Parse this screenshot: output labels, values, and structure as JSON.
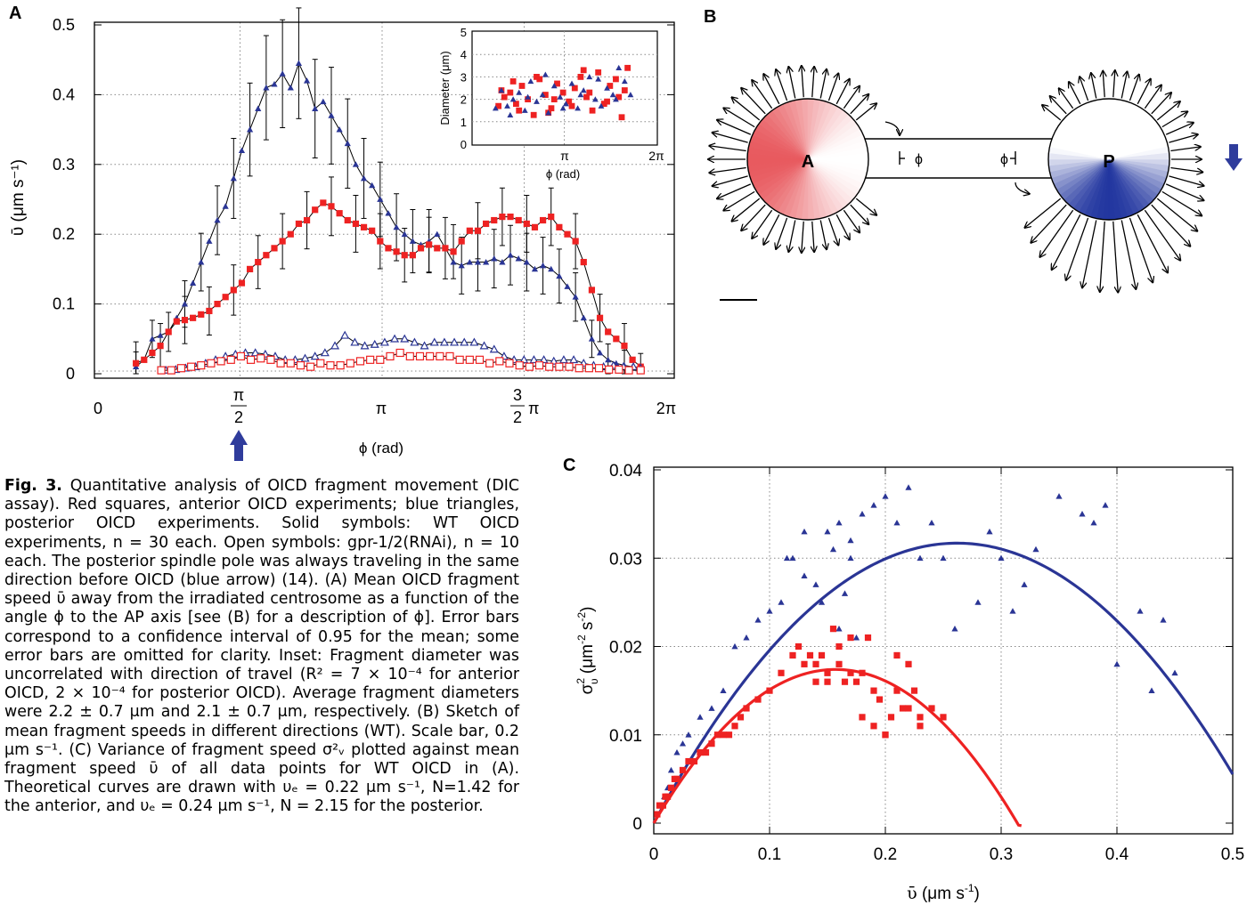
{
  "panels": {
    "a": "A",
    "b": "B",
    "c": "C"
  },
  "panel_a": {
    "xlabel": "ϕ (rad)",
    "ylabel": "ῡ  (μm s⁻¹)",
    "yticks": [
      "0",
      "0.1",
      "0.2",
      "0.3",
      "0.4",
      "0.5"
    ],
    "xticks": [
      "0",
      "π/2",
      "π",
      "3/2 π",
      "2π"
    ]
  },
  "inset": {
    "xlabel": "ϕ (rad)",
    "ylabel": "Diameter (μm)",
    "yticks": [
      "0",
      "1",
      "2",
      "3",
      "4",
      "5"
    ],
    "xticks": [
      "π",
      "2π"
    ]
  },
  "panel_b": {
    "label_a": "A",
    "label_p": "P",
    "phi_left": "ϕ",
    "phi_right": "ϕ"
  },
  "panel_c": {
    "xlabel": "ῡ  (μm s⁻¹)",
    "ylabel": "σ²ᵥ  (μm⁻² s⁻²)",
    "xticks": [
      "0",
      "0.1",
      "0.2",
      "0.3",
      "0.4",
      "0.5"
    ],
    "yticks": [
      "0",
      "0.01",
      "0.02",
      "0.03",
      "0.04"
    ]
  },
  "colors": {
    "anterior": "#ee2222",
    "posterior": "#2a3595",
    "arrow": "#2f3c9c"
  },
  "chart_data": [
    {
      "type": "line",
      "panel": "A",
      "xlim": [
        0,
        6.2832
      ],
      "ylim": [
        0,
        0.5
      ],
      "grid": true,
      "series": [
        {
          "marker": "filled-triangle",
          "color": "#2a3595",
          "x": [
            0.42,
            0.51,
            0.6,
            0.69,
            0.78,
            0.87,
            0.96,
            1.05,
            1.14,
            1.23,
            1.32,
            1.41,
            1.5,
            1.59,
            1.68,
            1.77,
            1.86,
            1.95,
            2.04,
            2.13,
            2.22,
            2.31,
            2.4,
            2.49,
            2.58,
            2.67,
            2.76,
            2.85,
            2.94,
            3.03,
            3.12,
            3.21,
            3.3,
            3.39,
            3.48,
            3.57,
            3.66,
            3.75,
            3.84,
            3.93,
            4.02,
            4.11,
            4.2,
            4.29,
            4.38,
            4.47,
            4.56,
            4.65,
            4.74,
            4.83,
            4.92,
            5.01,
            5.1,
            5.19,
            5.28,
            5.37,
            5.46,
            5.55,
            5.64,
            5.73,
            5.82,
            5.91,
            6.0
          ],
          "y": [
            0.01,
            0.02,
            0.05,
            0.055,
            0.06,
            0.08,
            0.1,
            0.13,
            0.16,
            0.19,
            0.22,
            0.24,
            0.28,
            0.32,
            0.35,
            0.38,
            0.41,
            0.415,
            0.43,
            0.41,
            0.445,
            0.42,
            0.38,
            0.39,
            0.37,
            0.35,
            0.33,
            0.3,
            0.28,
            0.27,
            0.25,
            0.23,
            0.21,
            0.2,
            0.19,
            0.185,
            0.19,
            0.2,
            0.18,
            0.16,
            0.155,
            0.16,
            0.16,
            0.16,
            0.165,
            0.16,
            0.17,
            0.165,
            0.16,
            0.15,
            0.155,
            0.15,
            0.14,
            0.125,
            0.11,
            0.08,
            0.05,
            0.03,
            0.02,
            0.015,
            0.012,
            0.01,
            0.008
          ]
        },
        {
          "marker": "filled-square",
          "color": "#ee2222",
          "x": [
            0.42,
            0.51,
            0.6,
            0.69,
            0.78,
            0.87,
            0.96,
            1.05,
            1.14,
            1.23,
            1.32,
            1.41,
            1.5,
            1.59,
            1.68,
            1.77,
            1.86,
            1.95,
            2.04,
            2.13,
            2.22,
            2.31,
            2.4,
            2.49,
            2.58,
            2.67,
            2.76,
            2.85,
            2.94,
            3.03,
            3.12,
            3.21,
            3.3,
            3.39,
            3.48,
            3.57,
            3.66,
            3.75,
            3.84,
            3.93,
            4.02,
            4.11,
            4.2,
            4.29,
            4.38,
            4.47,
            4.56,
            4.65,
            4.74,
            4.83,
            4.92,
            5.01,
            5.1,
            5.19,
            5.28,
            5.37,
            5.46,
            5.55,
            5.64,
            5.73,
            5.82,
            5.91,
            6.0
          ],
          "y": [
            0.015,
            0.02,
            0.03,
            0.04,
            0.06,
            0.075,
            0.077,
            0.08,
            0.085,
            0.09,
            0.1,
            0.11,
            0.12,
            0.13,
            0.15,
            0.16,
            0.17,
            0.18,
            0.19,
            0.2,
            0.215,
            0.22,
            0.235,
            0.245,
            0.24,
            0.23,
            0.22,
            0.215,
            0.21,
            0.205,
            0.19,
            0.18,
            0.175,
            0.17,
            0.17,
            0.18,
            0.185,
            0.18,
            0.18,
            0.175,
            0.19,
            0.205,
            0.205,
            0.215,
            0.22,
            0.225,
            0.225,
            0.22,
            0.215,
            0.21,
            0.22,
            0.225,
            0.21,
            0.2,
            0.19,
            0.16,
            0.12,
            0.08,
            0.06,
            0.05,
            0.04,
            0.02,
            0.01
          ]
        },
        {
          "marker": "open-triangle",
          "color": "#2a3595",
          "x": [
            0.75,
            0.86,
            0.97,
            1.08,
            1.19,
            1.3,
            1.41,
            1.52,
            1.63,
            1.74,
            1.85,
            1.96,
            2.07,
            2.18,
            2.29,
            2.4,
            2.51,
            2.62,
            2.73,
            2.84,
            2.95,
            3.06,
            3.17,
            3.28,
            3.39,
            3.5,
            3.61,
            3.72,
            3.83,
            3.94,
            4.05,
            4.16,
            4.27,
            4.38,
            4.49,
            4.6,
            4.71,
            4.82,
            4.93,
            5.04,
            5.15,
            5.26,
            5.37,
            5.48,
            5.59,
            5.7,
            5.81,
            5.92,
            6.0
          ],
          "y": [
            0.005,
            0.006,
            0.008,
            0.01,
            0.015,
            0.02,
            0.025,
            0.028,
            0.03,
            0.03,
            0.028,
            0.025,
            0.02,
            0.02,
            0.022,
            0.025,
            0.03,
            0.04,
            0.055,
            0.045,
            0.04,
            0.042,
            0.045,
            0.05,
            0.05,
            0.045,
            0.04,
            0.045,
            0.045,
            0.045,
            0.045,
            0.045,
            0.04,
            0.035,
            0.025,
            0.02,
            0.02,
            0.02,
            0.02,
            0.018,
            0.02,
            0.02,
            0.015,
            0.012,
            0.01,
            0.012,
            0.01,
            0.01,
            0.008
          ]
        },
        {
          "marker": "open-square",
          "color": "#ee2222",
          "x": [
            0.7,
            0.81,
            0.92,
            1.03,
            1.14,
            1.25,
            1.36,
            1.47,
            1.58,
            1.69,
            1.8,
            1.91,
            2.02,
            2.13,
            2.24,
            2.35,
            2.46,
            2.57,
            2.68,
            2.79,
            2.9,
            3.01,
            3.12,
            3.23,
            3.34,
            3.45,
            3.56,
            3.67,
            3.78,
            3.89,
            4.0,
            4.11,
            4.22,
            4.33,
            4.44,
            4.55,
            4.66,
            4.77,
            4.88,
            4.99,
            5.1,
            5.21,
            5.32,
            5.43,
            5.54,
            5.65,
            5.76,
            5.87,
            6.0
          ],
          "y": [
            0.005,
            0.005,
            0.008,
            0.01,
            0.012,
            0.015,
            0.018,
            0.02,
            0.025,
            0.02,
            0.022,
            0.02,
            0.015,
            0.015,
            0.012,
            0.01,
            0.015,
            0.012,
            0.012,
            0.015,
            0.018,
            0.02,
            0.02,
            0.025,
            0.03,
            0.025,
            0.025,
            0.025,
            0.025,
            0.025,
            0.02,
            0.02,
            0.02,
            0.015,
            0.018,
            0.015,
            0.012,
            0.01,
            0.012,
            0.01,
            0.01,
            0.01,
            0.008,
            0.008,
            0.008,
            0.006,
            0.006,
            0.005,
            0.005
          ]
        }
      ]
    },
    {
      "type": "scatter",
      "panel": "A-inset",
      "xlim": [
        0,
        6.2832
      ],
      "ylim": [
        0,
        5
      ],
      "series": [
        {
          "marker": "filled-square",
          "color": "#ee2222",
          "x": [
            0.9,
            1.1,
            1.3,
            1.5,
            1.7,
            1.9,
            2.1,
            2.3,
            2.5,
            2.7,
            2.9,
            3.1,
            3.3,
            3.5,
            3.7,
            3.9,
            4.1,
            4.3,
            4.5,
            4.7,
            4.9,
            5.1,
            5.3,
            1.0,
            1.6,
            2.2,
            2.8,
            3.4,
            4.0,
            4.6,
            5.2,
            1.4,
            2.6,
            3.8,
            5.0
          ],
          "y": [
            1.7,
            2.1,
            2.3,
            1.8,
            2.6,
            2.0,
            1.3,
            2.9,
            2.2,
            1.6,
            2.7,
            2.3,
            1.9,
            2.5,
            3.0,
            2.1,
            1.5,
            3.2,
            1.8,
            2.6,
            2.9,
            1.2,
            3.4,
            2.4,
            1.5,
            3.0,
            2.0,
            1.7,
            2.3,
            1.9,
            2.4,
            2.8,
            1.4,
            3.3,
            2.1
          ]
        },
        {
          "marker": "filled-triangle",
          "color": "#2a3595",
          "x": [
            0.8,
            1.0,
            1.2,
            1.4,
            1.6,
            1.8,
            2.0,
            2.2,
            2.4,
            2.6,
            2.8,
            3.0,
            3.2,
            3.4,
            3.6,
            3.8,
            4.0,
            4.2,
            4.4,
            4.6,
            4.8,
            5.0,
            5.2,
            5.4,
            1.3,
            1.9,
            2.5,
            3.1,
            3.7,
            4.3,
            4.9
          ],
          "y": [
            1.6,
            2.4,
            1.7,
            2.0,
            2.3,
            1.5,
            2.8,
            1.9,
            2.2,
            1.4,
            2.6,
            2.1,
            1.8,
            2.7,
            1.6,
            2.4,
            3.0,
            2.0,
            1.7,
            2.5,
            2.2,
            3.4,
            2.8,
            2.2,
            1.3,
            2.1,
            3.1,
            1.6,
            2.2,
            2.9,
            2.0
          ]
        }
      ]
    },
    {
      "type": "scatter",
      "panel": "C",
      "xlim": [
        0,
        0.5
      ],
      "ylim": [
        0,
        0.04
      ],
      "grid": true,
      "series": [
        {
          "marker": "filled-triangle",
          "color": "#2a3595",
          "x": [
            0.003,
            0.006,
            0.009,
            0.012,
            0.015,
            0.02,
            0.025,
            0.03,
            0.04,
            0.05,
            0.06,
            0.07,
            0.08,
            0.09,
            0.1,
            0.11,
            0.115,
            0.12,
            0.13,
            0.14,
            0.145,
            0.15,
            0.155,
            0.16,
            0.165,
            0.17,
            0.175,
            0.18,
            0.19,
            0.2,
            0.21,
            0.22,
            0.23,
            0.24,
            0.26,
            0.28,
            0.29,
            0.3,
            0.31,
            0.33,
            0.35,
            0.37,
            0.38,
            0.39,
            0.4,
            0.42,
            0.43,
            0.44,
            0.45,
            0.16,
            0.17,
            0.13,
            0.25,
            0.32
          ],
          "y": [
            0.001,
            0.002,
            0.003,
            0.004,
            0.006,
            0.008,
            0.009,
            0.01,
            0.012,
            0.013,
            0.015,
            0.02,
            0.021,
            0.023,
            0.024,
            0.025,
            0.03,
            0.03,
            0.028,
            0.027,
            0.025,
            0.033,
            0.031,
            0.034,
            0.026,
            0.03,
            0.021,
            0.035,
            0.036,
            0.037,
            0.034,
            0.038,
            0.03,
            0.034,
            0.022,
            0.025,
            0.033,
            0.03,
            0.024,
            0.031,
            0.037,
            0.035,
            0.034,
            0.036,
            0.018,
            0.024,
            0.015,
            0.023,
            0.017,
            0.022,
            0.032,
            0.033,
            0.03,
            0.027
          ]
        },
        {
          "marker": "filled-square",
          "color": "#ee2222",
          "x": [
            0.003,
            0.005,
            0.008,
            0.01,
            0.012,
            0.015,
            0.018,
            0.02,
            0.025,
            0.03,
            0.035,
            0.04,
            0.045,
            0.05,
            0.055,
            0.06,
            0.065,
            0.07,
            0.075,
            0.08,
            0.09,
            0.1,
            0.11,
            0.12,
            0.125,
            0.13,
            0.135,
            0.14,
            0.145,
            0.15,
            0.155,
            0.16,
            0.165,
            0.17,
            0.175,
            0.18,
            0.185,
            0.19,
            0.195,
            0.2,
            0.205,
            0.21,
            0.215,
            0.22,
            0.225,
            0.23,
            0.24,
            0.25,
            0.16,
            0.17,
            0.19,
            0.2,
            0.21,
            0.22,
            0.23,
            0.14,
            0.15,
            0.18
          ],
          "y": [
            0.001,
            0.002,
            0.002,
            0.003,
            0.003,
            0.004,
            0.005,
            0.005,
            0.006,
            0.007,
            0.007,
            0.008,
            0.008,
            0.009,
            0.01,
            0.01,
            0.01,
            0.011,
            0.012,
            0.013,
            0.014,
            0.015,
            0.017,
            0.019,
            0.02,
            0.018,
            0.019,
            0.016,
            0.019,
            0.017,
            0.022,
            0.018,
            0.016,
            0.017,
            0.016,
            0.017,
            0.021,
            0.015,
            0.014,
            0.01,
            0.012,
            0.015,
            0.013,
            0.018,
            0.015,
            0.012,
            0.013,
            0.012,
            0.02,
            0.021,
            0.011,
            0.01,
            0.019,
            0.013,
            0.011,
            0.018,
            0.016,
            0.012
          ]
        },
        {
          "type": "curve",
          "color": "#2a3595",
          "x_range": [
            0,
            0.5
          ],
          "peak": [
            0.262,
            0.0317
          ],
          "root": 0.524
        },
        {
          "type": "curve",
          "color": "#ee2222",
          "x_range": [
            0,
            0.32
          ],
          "peak": [
            0.157,
            0.0174
          ],
          "root": 0.314
        }
      ]
    }
  ],
  "caption": {
    "title": "Fig. 3.",
    "text": " Quantitative analysis of OICD fragment movement (DIC assay). Red squares, anterior OICD experiments; blue triangles, posterior OICD experiments. Solid symbols: WT OICD experiments, n = 30 each. Open symbols: gpr-1/2(RNAi), n = 10 each. The posterior spindle pole was always traveling in the same direction before OICD (blue arrow) (14). (A) Mean OICD fragment speed ῡ away from the irradiated centrosome as a function of the angle ϕ to the AP axis [see (B) for a description of ϕ]. Error bars correspond to a confidence interval of 0.95 for the mean; some error bars are omitted for clarity. Inset: Fragment diameter was uncorrelated with direction of travel (R² = 7 × 10⁻⁴ for anterior OICD, 2 × 10⁻⁴ for posterior OICD). Average fragment diameters were 2.2 ± 0.7 μm and 2.1 ± 0.7 μm, respectively. (B) Sketch of mean fragment speeds in different directions (WT). Scale bar, 0.2 μm s⁻¹. (C) Variance of fragment speed σ²ᵥ plotted against mean fragment speed ῡ of all data points for WT OICD in (A). Theoretical curves are drawn with υₑ = 0.22 μm s⁻¹, N=1.42 for the anterior, and υₑ = 0.24 μm s⁻¹, N = 2.15 for the posterior."
  }
}
